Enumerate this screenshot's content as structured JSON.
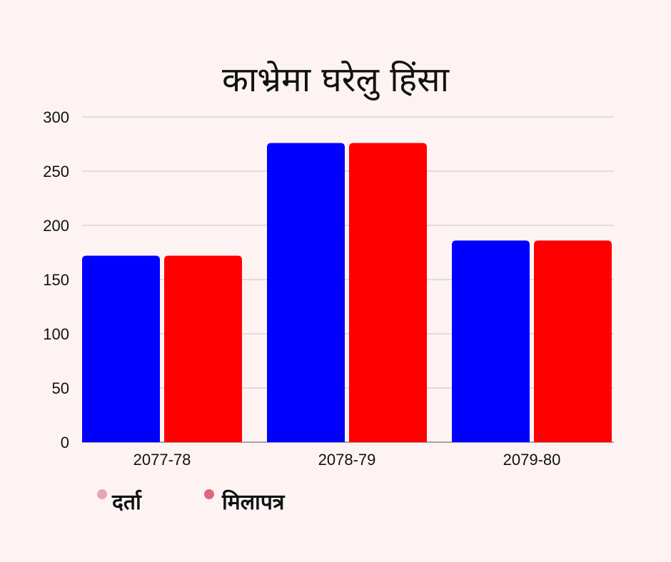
{
  "chart_data": {
    "type": "bar",
    "title": "काभ्रेमा घरेलु हिंसा",
    "categories": [
      "2077-78",
      "2078-79",
      "2079-80"
    ],
    "series": [
      {
        "name": "दर्ता",
        "values": [
          172,
          276,
          186
        ],
        "color": "#0000ff",
        "legend_color": "#e8a3bd"
      },
      {
        "name": "मिलापत्र",
        "values": [
          172,
          276,
          186
        ],
        "color": "#ff0000",
        "legend_color": "#e0667e"
      }
    ],
    "yticks": [
      0,
      50,
      100,
      150,
      200,
      250,
      300
    ],
    "ylim": [
      0,
      300
    ],
    "grid": true,
    "legend_position": "bottom-left",
    "gridline_color": "#c4c4c4"
  }
}
